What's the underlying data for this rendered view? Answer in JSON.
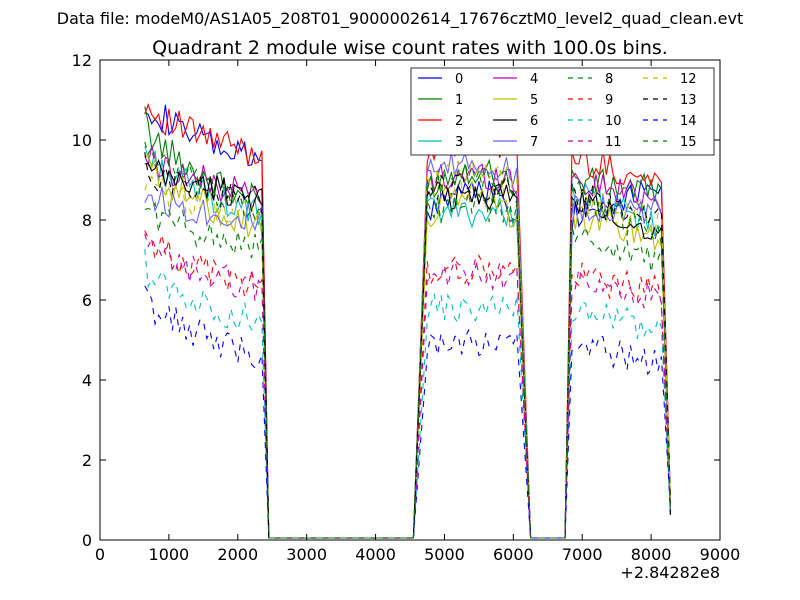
{
  "chart_data": {
    "type": "line",
    "suptitle": "Data file: modeM0/AS1A05_208T01_9000002614_17676cztM0_level2_quad_clean.evt",
    "title": "Quadrant 2 module wise count rates with 100.0s bins.",
    "xlabel": "",
    "ylabel": "",
    "x_offset_label": "+2.84282e8",
    "xlim": [
      0,
      9000
    ],
    "ylim": [
      0,
      12
    ],
    "xticks": [
      0,
      1000,
      2000,
      3000,
      4000,
      5000,
      6000,
      7000,
      8000,
      9000
    ],
    "yticks": [
      0,
      2,
      4,
      6,
      8,
      10,
      12
    ],
    "legend_position": "upper-right",
    "legend_columns": 4,
    "gaps": [
      [
        2450,
        4550
      ],
      [
        6250,
        6750
      ]
    ],
    "segments": [
      {
        "start": 650,
        "end": 2350,
        "fall_end": 2450
      },
      {
        "start": 4550,
        "rise_end": 4750,
        "end": 6050,
        "fall_end": 6250
      },
      {
        "start": 6750,
        "rise_end": 6850,
        "end": 8150,
        "fall_end": 8280
      }
    ],
    "series": [
      {
        "name": "0",
        "color": "#0000ff",
        "dash": "solid",
        "base": [
          11.1,
          9.4,
          8.1,
          9.3,
          8.1,
          9.0
        ]
      },
      {
        "name": "1",
        "color": "#008000",
        "dash": "solid",
        "base": [
          10.5,
          8.4,
          8.8,
          9.6,
          9.0,
          8.7
        ]
      },
      {
        "name": "2",
        "color": "#ff0000",
        "dash": "solid",
        "base": [
          11.0,
          9.6,
          9.8,
          9.9,
          9.6,
          8.9
        ]
      },
      {
        "name": "3",
        "color": "#00bfbf",
        "dash": "solid",
        "base": [
          9.8,
          8.1,
          8.2,
          8.2,
          8.7,
          7.8
        ]
      },
      {
        "name": "4",
        "color": "#bf00bf",
        "dash": "solid",
        "base": [
          9.7,
          8.6,
          9.0,
          9.2,
          9.0,
          8.5
        ]
      },
      {
        "name": "5",
        "color": "#bfbf00",
        "dash": "solid",
        "base": [
          9.6,
          7.8,
          8.0,
          9.2,
          8.1,
          7.6
        ]
      },
      {
        "name": "6",
        "color": "#000000",
        "dash": "solid",
        "base": [
          9.3,
          8.6,
          8.6,
          8.6,
          8.5,
          7.7
        ]
      },
      {
        "name": "7",
        "color": "#6666ff",
        "dash": "solid",
        "base": [
          8.7,
          8.0,
          9.1,
          9.6,
          8.4,
          8.2
        ]
      },
      {
        "name": "8",
        "color": "#008000",
        "dash": "dashed",
        "base": [
          8.4,
          7.3,
          8.2,
          8.4,
          7.6,
          7.0
        ]
      },
      {
        "name": "9",
        "color": "#ff0000",
        "dash": "dashed",
        "base": [
          7.7,
          6.3,
          6.7,
          6.8,
          6.6,
          6.2
        ]
      },
      {
        "name": "10",
        "color": "#00bfbf",
        "dash": "dashed",
        "base": [
          6.9,
          5.4,
          5.8,
          5.7,
          5.8,
          5.2
        ]
      },
      {
        "name": "11",
        "color": "#bf00bf",
        "dash": "dashed",
        "base": [
          7.4,
          6.3,
          6.6,
          6.7,
          6.4,
          6.0
        ]
      },
      {
        "name": "12",
        "color": "#bfbf00",
        "dash": "dashed",
        "base": [
          9.0,
          8.1,
          8.9,
          9.3,
          8.6,
          8.0
        ]
      },
      {
        "name": "13",
        "color": "#000000",
        "dash": "dashed",
        "base": [
          9.3,
          8.5,
          8.7,
          8.9,
          8.6,
          7.9
        ]
      },
      {
        "name": "14",
        "color": "#0000ff",
        "dash": "dashed",
        "base": [
          6.1,
          4.6,
          4.9,
          4.9,
          4.8,
          4.5
        ]
      },
      {
        "name": "15",
        "color": "#008000",
        "dash": "dashed",
        "base": [
          10.0,
          8.2,
          8.8,
          9.2,
          8.8,
          7.5
        ]
      }
    ]
  }
}
